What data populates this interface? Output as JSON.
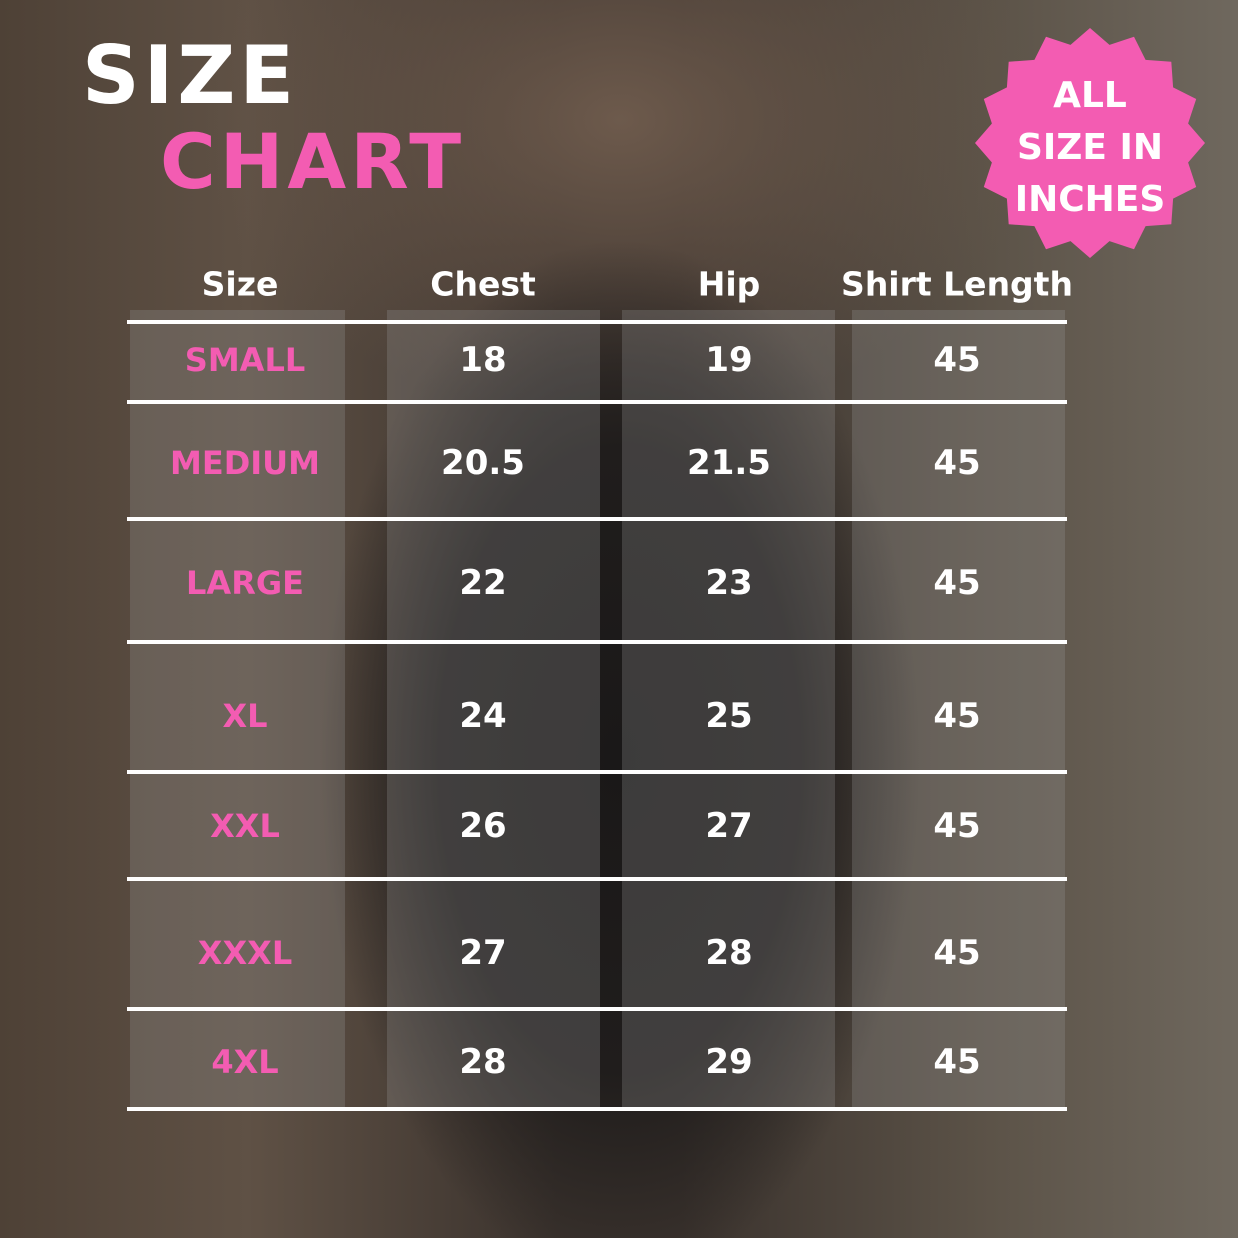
{
  "title": {
    "line1": "SIZE",
    "line2": "CHART"
  },
  "badge": {
    "lines": [
      "ALL",
      "SIZE IN",
      "INCHES"
    ],
    "color": "#f35cb2"
  },
  "accent_color": "#f35cb2",
  "table": {
    "headers": [
      "Size",
      "Chest",
      "Hip",
      "Shirt Length"
    ],
    "rows": [
      [
        "SMALL",
        "18",
        "19",
        "45"
      ],
      [
        "MEDIUM",
        "20.5",
        "21.5",
        "45"
      ],
      [
        "LARGE",
        "22",
        "23",
        "45"
      ],
      [
        "XL",
        "24",
        "25",
        "45"
      ],
      [
        "XXL",
        "26",
        "27",
        "45"
      ],
      [
        "XXXL",
        "27",
        "28",
        "45"
      ],
      [
        "4XL",
        "28",
        "29",
        "45"
      ]
    ]
  }
}
